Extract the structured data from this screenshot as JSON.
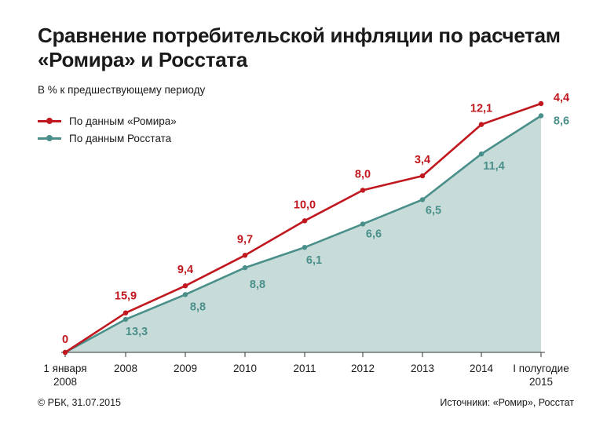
{
  "title": "Сравнение потребительской инфляции по расчетам «Ромира» и Росстата",
  "subtitle": "В % к предшествующему периоду",
  "footer": {
    "credit": "© РБК, 31.07.2015",
    "sources": "Источники: «Ромир», Росстат"
  },
  "chart_data": {
    "type": "line",
    "categories": [
      "1 января 2008",
      "2008",
      "2009",
      "2010",
      "2011",
      "2012",
      "2013",
      "2014",
      "I полугодие 2015"
    ],
    "series": [
      {
        "name": "По данным «Ромира»",
        "color": "#c0181e",
        "labels": [
          "0",
          "15,9",
          "9,4",
          "9,7",
          "10,0",
          "8,0",
          "3,4",
          "12,1",
          "4,4"
        ],
        "values": [
          0,
          15.9,
          9.4,
          9.7,
          10.0,
          8.0,
          3.4,
          12.1,
          4.4
        ],
        "cumulative_level": [
          0,
          15.9,
          26.8,
          39.1,
          53.0,
          65.3,
          71.1,
          91.8,
          100.2
        ]
      },
      {
        "name": "По данным Росстата",
        "color": "#4a8f8a",
        "labels": [
          "",
          "13,3",
          "8,8",
          "8,8",
          "6,1",
          "6,6",
          "6,5",
          "11,4",
          "8,6"
        ],
        "values": [
          null,
          13.3,
          8.8,
          8.8,
          6.1,
          6.6,
          6.5,
          11.4,
          8.6
        ],
        "cumulative_level": [
          0,
          13.3,
          23.3,
          34.1,
          42.3,
          51.7,
          61.5,
          79.9,
          95.3
        ]
      }
    ],
    "area_fill": "#c7dcd9",
    "grid": false,
    "legend": "top-left"
  }
}
